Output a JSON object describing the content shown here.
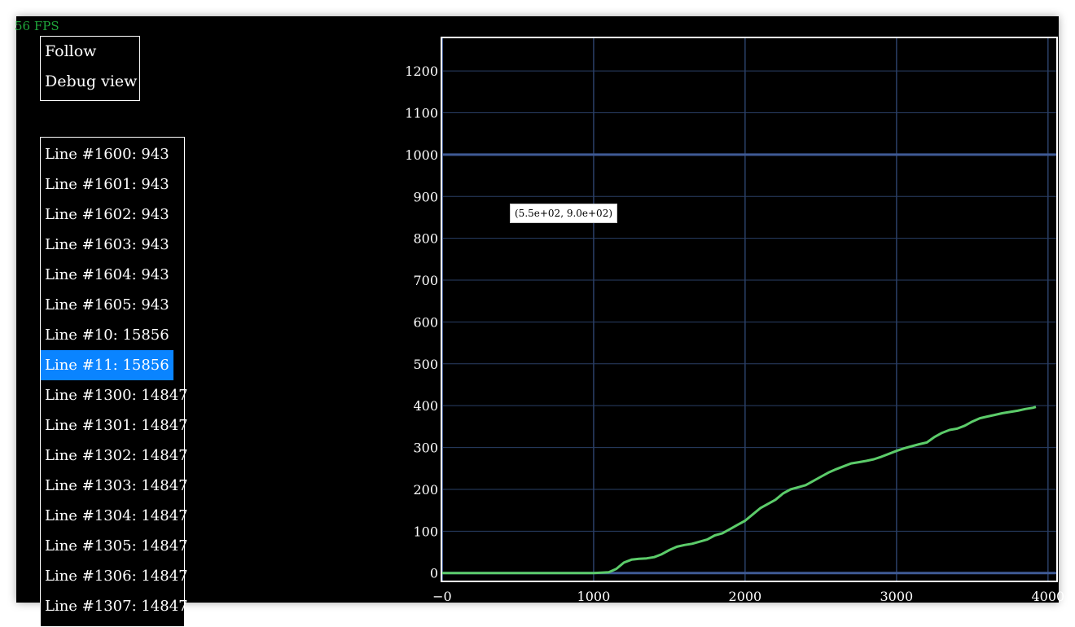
{
  "fps_label": "56 FPS",
  "menu": {
    "items": [
      {
        "label": "Follow"
      },
      {
        "label": "Debug view"
      }
    ]
  },
  "line_list": [
    {
      "label": "Line #1600: 943",
      "selected": false
    },
    {
      "label": "Line #1601: 943",
      "selected": false
    },
    {
      "label": "Line #1602: 943",
      "selected": false
    },
    {
      "label": "Line #1603: 943",
      "selected": false
    },
    {
      "label": "Line #1604: 943",
      "selected": false
    },
    {
      "label": "Line #1605: 943",
      "selected": false
    },
    {
      "label": "Line #10: 15856",
      "selected": false
    },
    {
      "label": "Line #11: 15856",
      "selected": true
    },
    {
      "label": "Line #1300: 14847",
      "selected": false
    },
    {
      "label": "Line #1301: 14847",
      "selected": false
    },
    {
      "label": "Line #1302: 14847",
      "selected": false
    },
    {
      "label": "Line #1303: 14847",
      "selected": false
    },
    {
      "label": "Line #1304: 14847",
      "selected": false
    },
    {
      "label": "Line #1305: 14847",
      "selected": false
    },
    {
      "label": "Line #1306: 14847",
      "selected": false
    },
    {
      "label": "Line #1307: 14847",
      "selected": false
    }
  ],
  "tooltip": "(5.5e+02, 9.0e+02)",
  "colors": {
    "background": "#000000",
    "fps": "#1fa33a",
    "selection": "#0a84ff",
    "grid": "#2a3f66",
    "hline": "#3f5a95",
    "series": "#5ccc6a"
  },
  "chart_data": {
    "type": "line",
    "x_ticks": [
      "−0",
      "1000",
      "2000",
      "3000",
      "4000"
    ],
    "y_ticks": [
      "0",
      "100",
      "200",
      "300",
      "400",
      "500",
      "600",
      "700",
      "800",
      "900",
      "1000",
      "1100",
      "1200"
    ],
    "xlim": [
      -5,
      4060
    ],
    "ylim": [
      -20,
      1280
    ],
    "grid": true,
    "hlines": [
      0,
      1000
    ],
    "series": [
      {
        "points": [
          [
            0,
            0
          ],
          [
            500,
            0
          ],
          [
            1000,
            0
          ],
          [
            1100,
            2
          ],
          [
            1150,
            10
          ],
          [
            1200,
            25
          ],
          [
            1250,
            32
          ],
          [
            1300,
            34
          ],
          [
            1350,
            35
          ],
          [
            1400,
            38
          ],
          [
            1450,
            45
          ],
          [
            1500,
            55
          ],
          [
            1550,
            63
          ],
          [
            1600,
            67
          ],
          [
            1650,
            70
          ],
          [
            1700,
            75
          ],
          [
            1750,
            80
          ],
          [
            1800,
            90
          ],
          [
            1850,
            95
          ],
          [
            1900,
            105
          ],
          [
            1950,
            115
          ],
          [
            2000,
            125
          ],
          [
            2050,
            140
          ],
          [
            2100,
            155
          ],
          [
            2150,
            165
          ],
          [
            2200,
            175
          ],
          [
            2250,
            190
          ],
          [
            2300,
            200
          ],
          [
            2350,
            205
          ],
          [
            2400,
            210
          ],
          [
            2450,
            220
          ],
          [
            2500,
            230
          ],
          [
            2550,
            240
          ],
          [
            2600,
            248
          ],
          [
            2650,
            255
          ],
          [
            2700,
            262
          ],
          [
            2750,
            265
          ],
          [
            2800,
            268
          ],
          [
            2850,
            272
          ],
          [
            2900,
            278
          ],
          [
            2950,
            285
          ],
          [
            3000,
            292
          ],
          [
            3050,
            298
          ],
          [
            3100,
            303
          ],
          [
            3150,
            308
          ],
          [
            3200,
            312
          ],
          [
            3250,
            325
          ],
          [
            3300,
            335
          ],
          [
            3350,
            342
          ],
          [
            3400,
            345
          ],
          [
            3450,
            352
          ],
          [
            3500,
            362
          ],
          [
            3550,
            370
          ],
          [
            3600,
            374
          ],
          [
            3650,
            378
          ],
          [
            3700,
            382
          ],
          [
            3750,
            385
          ],
          [
            3800,
            388
          ],
          [
            3850,
            392
          ],
          [
            3900,
            395
          ],
          [
            3920,
            397
          ]
        ]
      }
    ]
  }
}
